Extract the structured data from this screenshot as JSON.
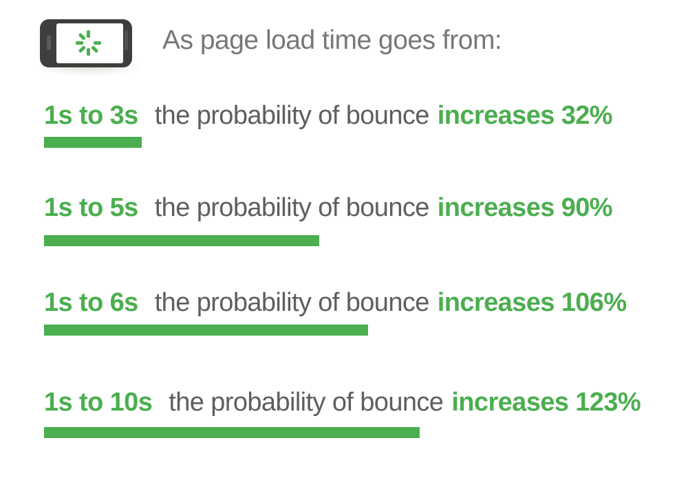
{
  "header": {
    "title": "As page load time goes from:",
    "icon": "phone-loading-spinner-icon"
  },
  "rows": [
    {
      "range": "1s to 3s",
      "label": "the probability of bounce",
      "result": "increases 32%",
      "value_pct": 32
    },
    {
      "range": "1s to 5s",
      "label": "the probability of bounce",
      "result": "increases 90%",
      "value_pct": 90
    },
    {
      "range": "1s to 6s",
      "label": "the probability of bounce",
      "result": "increases 106%",
      "value_pct": 106
    },
    {
      "range": "1s to 10s",
      "label": "the probability of bounce",
      "result": "increases 123%",
      "value_pct": 123
    }
  ],
  "colors": {
    "green": "#4bae4f",
    "row_text_gray": "#5e5e5e",
    "title_gray": "#777777",
    "phone_body_gray": "#3e3e3e"
  },
  "chart_data": {
    "type": "bar",
    "orientation": "horizontal",
    "title": "As page load time goes from:",
    "categories": [
      "1s to 3s",
      "1s to 5s",
      "1s to 6s",
      "1s to 10s"
    ],
    "values": [
      32,
      90,
      106,
      123
    ],
    "unit": "%",
    "series_label": "probability of bounce increase",
    "xlabel": "",
    "ylabel": "page load time change",
    "xlim": [
      0,
      123
    ],
    "grid": false,
    "legend": false,
    "bar_color": "#4bae4f",
    "annotations": [
      "1s to 3s the probability of bounce increases 32%",
      "1s to 5s the probability of bounce increases 90%",
      "1s to 6s the probability of bounce increases 106%",
      "1s to 10s the probability of bounce increases 123%"
    ]
  }
}
